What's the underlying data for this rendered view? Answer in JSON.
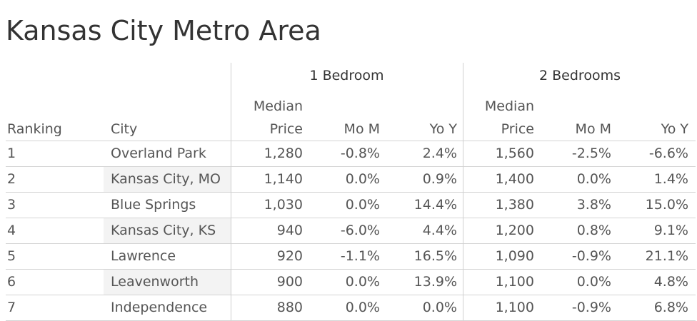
{
  "header": {
    "title": "Kansas City Metro Area"
  },
  "table": {
    "groups": [
      "1 Bedroom",
      "2 Bedrooms"
    ],
    "columns": [
      {
        "lines": [
          "Ranking"
        ]
      },
      {
        "lines": [
          "City"
        ]
      },
      {
        "lines": [
          "Median",
          "Price"
        ]
      },
      {
        "lines": [
          "Mo M"
        ]
      },
      {
        "lines": [
          "Yo Y"
        ]
      },
      {
        "lines": [
          "Median",
          "Price"
        ]
      },
      {
        "lines": [
          "Mo M"
        ]
      },
      {
        "lines": [
          "Yo Y"
        ]
      }
    ],
    "rows": [
      [
        "1",
        "Overland Park",
        "1,280",
        "-0.8%",
        "2.4%",
        "1,560",
        "-2.5%",
        "-6.6%"
      ],
      [
        "2",
        "Kansas City, MO",
        "1,140",
        "0.0%",
        "0.9%",
        "1,400",
        "0.0%",
        "1.4%"
      ],
      [
        "3",
        "Blue Springs",
        "1,030",
        "0.0%",
        "14.4%",
        "1,380",
        "3.8%",
        "15.0%"
      ],
      [
        "4",
        "Kansas City, KS",
        "940",
        "-6.0%",
        "4.4%",
        "1,200",
        "0.8%",
        "9.1%"
      ],
      [
        "5",
        "Lawrence",
        "920",
        "-1.1%",
        "16.5%",
        "1,090",
        "-0.9%",
        "21.1%"
      ],
      [
        "6",
        "Leavenworth",
        "900",
        "0.0%",
        "13.9%",
        "1,100",
        "0.0%",
        "4.8%"
      ],
      [
        "7",
        "Independence",
        "880",
        "0.0%",
        "0.0%",
        "1,100",
        "-0.9%",
        "6.8%"
      ]
    ]
  }
}
